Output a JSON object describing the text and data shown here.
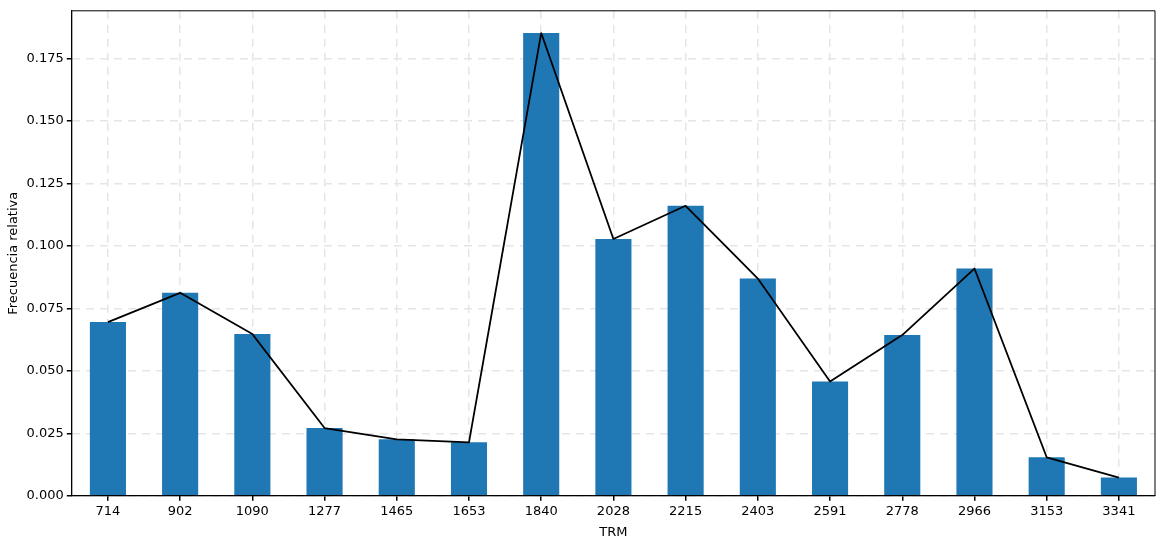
{
  "chart_data": {
    "type": "bar",
    "xlabel": "TRM",
    "ylabel": "Frecuencia relativa",
    "categories": [
      "714",
      "902",
      "1090",
      "1277",
      "1465",
      "1653",
      "1840",
      "2028",
      "2215",
      "2403",
      "2591",
      "2778",
      "2966",
      "3153",
      "3341"
    ],
    "series": [
      {
        "color": "#1f77b4",
        "values": [
          0.0695,
          0.0812,
          0.0647,
          0.0271,
          0.0226,
          0.0214,
          0.1851,
          0.1027,
          0.116,
          0.0869,
          0.0457,
          0.0643,
          0.0909,
          0.0154,
          0.0073
        ]
      },
      {
        "type": "line",
        "color": "#000000",
        "values": [
          0.0695,
          0.0812,
          0.0647,
          0.0271,
          0.0226,
          0.0214,
          0.1851,
          0.1027,
          0.116,
          0.0869,
          0.0457,
          0.0643,
          0.0909,
          0.0154,
          0.0073
        ]
      }
    ],
    "ylim": [
      0,
      0.194
    ],
    "yticks": [
      {
        "value": 0,
        "label": "0.000"
      },
      {
        "value": 0.025,
        "label": "0.025"
      },
      {
        "value": 0.05,
        "label": "0.050"
      },
      {
        "value": 0.075,
        "label": "0.075"
      },
      {
        "value": 0.1,
        "label": "0.100"
      },
      {
        "value": 0.125,
        "label": "0.125"
      },
      {
        "value": 0.15,
        "label": "0.150"
      },
      {
        "value": 0.175,
        "label": "0.175"
      }
    ],
    "grid": true,
    "legend": false,
    "marker": "none",
    "line_style": "solid"
  }
}
